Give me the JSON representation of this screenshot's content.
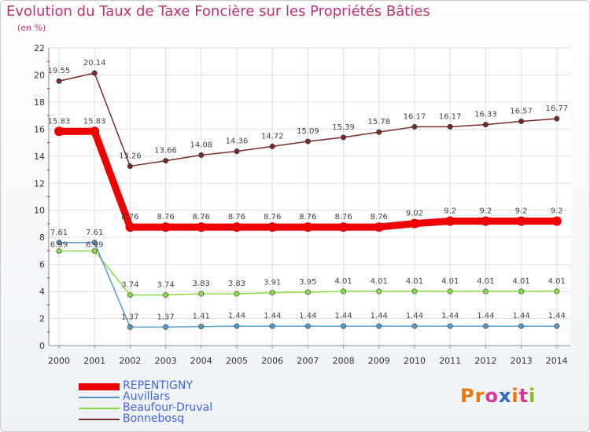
{
  "title": "Evolution du Taux de Taxe Foncière sur les Propriétés Bâties",
  "subtitle": "(en %)",
  "logo": "Proxiti",
  "chart_data": {
    "type": "line",
    "title": "Evolution du Taux de Taxe Foncière sur les Propriétés Bâties",
    "ylabel": "(en %)",
    "xlabel": "",
    "ylim": [
      0,
      22
    ],
    "yticks": [
      0,
      2,
      4,
      6,
      8,
      10,
      12,
      14,
      16,
      18,
      20,
      22
    ],
    "grid": true,
    "legend": "bottom-left",
    "x": [
      "2000",
      "2001",
      "2002",
      "2003",
      "2004",
      "2005",
      "2006",
      "2007",
      "2008",
      "2009",
      "2010",
      "2011",
      "2012",
      "2013",
      "2014"
    ],
    "series": [
      {
        "name": "REPENTIGNY",
        "color": "#ee0000",
        "values": [
          15.83,
          15.83,
          8.76,
          8.76,
          8.76,
          8.76,
          8.76,
          8.76,
          8.76,
          8.76,
          9.02,
          9.2,
          9.2,
          9.2,
          9.2
        ],
        "labels": [
          "15.83",
          "15.83",
          "8.76",
          "8.76",
          "8.76",
          "8.76",
          "8.76",
          "8.76",
          "8.76",
          "8.76",
          "9.02",
          "9.2",
          "9.2",
          "9.2",
          "9.2"
        ]
      },
      {
        "name": "Auvillars",
        "color": "#5599cc",
        "values": [
          7.61,
          7.61,
          1.37,
          1.37,
          1.41,
          1.44,
          1.44,
          1.44,
          1.44,
          1.44,
          1.44,
          1.44,
          1.44,
          1.44,
          1.44
        ],
        "labels": [
          "7.61",
          "7.61",
          "1.37",
          "1.37",
          "1.41",
          "1.44",
          "1.44",
          "1.44",
          "1.44",
          "1.44",
          "1.44",
          "1.44",
          "1.44",
          "1.44",
          "1.44"
        ]
      },
      {
        "name": "Beaufour-Druval",
        "color": "#88dd44",
        "values": [
          6.99,
          6.99,
          3.74,
          3.74,
          3.83,
          3.83,
          3.91,
          3.95,
          4.01,
          4.01,
          4.01,
          4.01,
          4.01,
          4.01,
          4.01
        ],
        "labels": [
          "6.99",
          "6.99",
          "3.74",
          "3.74",
          "3.83",
          "3.83",
          "3.91",
          "3.95",
          "4.01",
          "4.01",
          "4.01",
          "4.01",
          "4.01",
          "4.01",
          "4.01"
        ]
      },
      {
        "name": "Bonnebosq",
        "color": "#7a2a2a",
        "values": [
          19.55,
          20.14,
          13.26,
          13.66,
          14.08,
          14.36,
          14.72,
          15.09,
          15.39,
          15.78,
          16.17,
          16.17,
          16.33,
          16.57,
          16.77
        ],
        "labels": [
          "19.55",
          "20.14",
          "13.26",
          "13.66",
          "14.08",
          "14.36",
          "14.72",
          "15.09",
          "15.39",
          "15.78",
          "16.17",
          "16.17",
          "16.33",
          "16.57",
          "16.77"
        ]
      }
    ]
  },
  "logo_colors": [
    "#ee7700",
    "#ee7700",
    "#dd3399",
    "#3366cc",
    "#ee7700",
    "#dd3399",
    "#88bb22"
  ]
}
